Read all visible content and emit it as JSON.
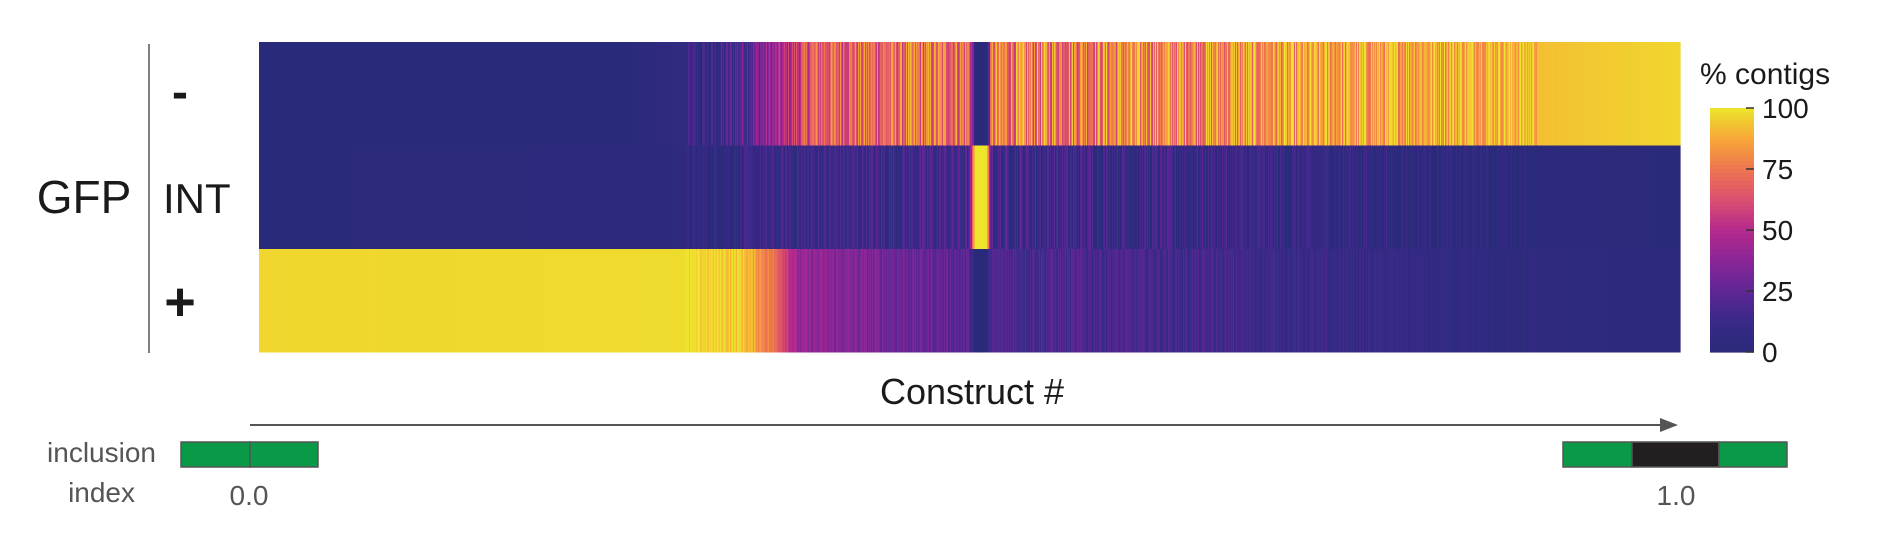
{
  "chart_data": {
    "type": "heatmap",
    "title": "",
    "group_label": "GFP",
    "rows": [
      "-",
      "INT",
      "+"
    ],
    "xlabel": "Construct #",
    "colorbar": {
      "title": "% contigs",
      "ticks": [
        "0",
        "25",
        "50",
        "75",
        "100"
      ],
      "range": [
        0,
        100
      ],
      "colormap": "plasma",
      "low_color": "#2a2a7a",
      "mid_color": "#b52b8d",
      "high_color": "#ede52b"
    },
    "profiles_percent": {
      "minus": [
        {
          "pos": 0.0,
          "value": 0
        },
        {
          "pos": 0.26,
          "value": 0
        },
        {
          "pos": 0.32,
          "value": 10
        },
        {
          "pos": 0.37,
          "value": 45
        },
        {
          "pos": 0.39,
          "value": 68
        },
        {
          "pos": 0.5,
          "value": 74
        },
        {
          "pos": 0.504,
          "value": 0
        },
        {
          "pos": 0.512,
          "value": 0
        },
        {
          "pos": 0.516,
          "value": 75
        },
        {
          "pos": 0.7,
          "value": 82
        },
        {
          "pos": 0.85,
          "value": 90
        },
        {
          "pos": 1.0,
          "value": 97
        }
      ],
      "int": [
        {
          "pos": 0.0,
          "value": 0
        },
        {
          "pos": 0.28,
          "value": 2
        },
        {
          "pos": 0.37,
          "value": 12
        },
        {
          "pos": 0.5,
          "value": 15
        },
        {
          "pos": 0.504,
          "value": 100
        },
        {
          "pos": 0.512,
          "value": 100
        },
        {
          "pos": 0.516,
          "value": 14
        },
        {
          "pos": 0.7,
          "value": 10
        },
        {
          "pos": 0.88,
          "value": 3
        },
        {
          "pos": 1.0,
          "value": 0
        }
      ],
      "plus": [
        {
          "pos": 0.0,
          "value": 97
        },
        {
          "pos": 0.3,
          "value": 98
        },
        {
          "pos": 0.34,
          "value": 95
        },
        {
          "pos": 0.365,
          "value": 70
        },
        {
          "pos": 0.38,
          "value": 40
        },
        {
          "pos": 0.5,
          "value": 22
        },
        {
          "pos": 0.504,
          "value": 0
        },
        {
          "pos": 0.512,
          "value": 0
        },
        {
          "pos": 0.516,
          "value": 20
        },
        {
          "pos": 0.7,
          "value": 14
        },
        {
          "pos": 0.88,
          "value": 5
        },
        {
          "pos": 1.0,
          "value": 2
        }
      ]
    },
    "inclusion_index": {
      "label_line1": "inclusion",
      "label_line2": "index",
      "start_value": "0.0",
      "end_value": "1.0",
      "exon_color": "#0a9a47",
      "intron_color": "#231f20"
    }
  }
}
